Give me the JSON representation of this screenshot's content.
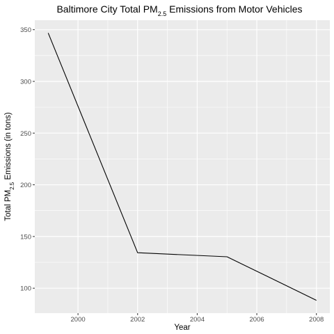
{
  "chart_data": {
    "type": "line",
    "title": {
      "prefix": "Baltimore City Total PM",
      "subscript": "2.5",
      "suffix": " Emissions from Motor Vehicles"
    },
    "xlabel": "Year",
    "ylabel": {
      "prefix": "Total PM",
      "subscript": "2.5",
      "suffix": " Emissions (in tons)"
    },
    "x": [
      1999,
      2002,
      2005,
      2008
    ],
    "series": [
      {
        "values": [
          346.8,
          134.3,
          130.4,
          88.3
        ],
        "color": "#000000"
      }
    ],
    "xlim": [
      1998.55,
      2008.45
    ],
    "ylim": [
      75.9,
      359.2
    ],
    "x_ticks": [
      2000,
      2002,
      2004,
      2006,
      2008
    ],
    "y_ticks": [
      100,
      150,
      200,
      250,
      300,
      350
    ],
    "grid": true,
    "panel_background": "#ebebeb",
    "grid_color": "#ffffff"
  }
}
